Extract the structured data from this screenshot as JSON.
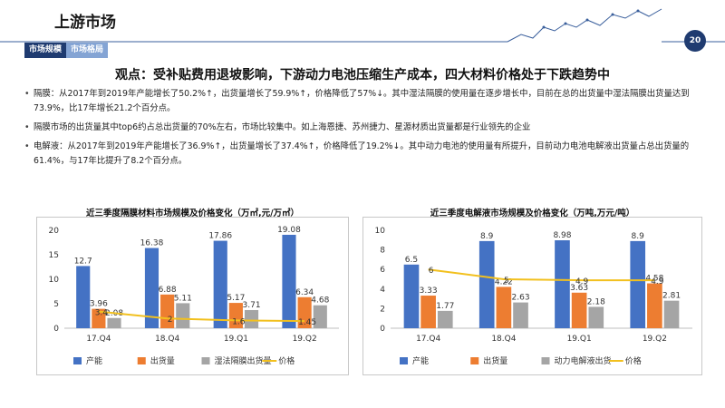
{
  "header": {
    "title": "上游市场",
    "page_number": "20",
    "tabs": [
      {
        "label": "市场规模",
        "active": true
      },
      {
        "label": "市场格局",
        "active": false
      }
    ],
    "accent_color": "#1f3b70"
  },
  "headline": "观点：受补贴费用退坡影响，下游动力电池压缩生产成本，四大材料价格处于下跌趋势中",
  "bullets": [
    "隔膜：从2017年到2019年产能增长了50.2%↑，出货量增长了59.9%↑，价格降低了57%↓。其中湿法隔膜的使用量在逐步增长中，目前在总的出货量中湿法隔膜出货量达到73.9%，比17年增长21.2个百分点。",
    "隔膜市场的出货量其中top6约占总出货量的70%左右，市场比较集中。如上海恩捷、苏州捷力、星源材质出货量都是行业领先的企业",
    "电解液：从2017年到2019年产能增长了36.9%↑，出货量增长了37.4%↑，价格降低了19.2%↓。其中动力电池的使用量有所提升，目前动力电池电解液出货量占总出货量的61.4%，与17年比提升了8.2个百分点。"
  ],
  "chart_data": [
    {
      "type": "bar",
      "title": "近三季度隔膜材料市场规模及价格变化（万㎡,元/万㎡）",
      "categories": [
        "17.Q4",
        "18.Q4",
        "19.Q1",
        "19.Q2"
      ],
      "series": [
        {
          "name": "产能",
          "kind": "bar",
          "color": "#4472c4",
          "values": [
            12.7,
            16.38,
            17.86,
            19.08
          ],
          "labels": [
            "12.7",
            "16.38",
            "17.86",
            "19.08"
          ]
        },
        {
          "name": "出货量",
          "kind": "bar",
          "color": "#ed7d31",
          "values": [
            3.96,
            6.88,
            5.17,
            6.34
          ],
          "labels": [
            "3.96",
            "6.88",
            "5.17",
            "6.34"
          ]
        },
        {
          "name": "湿法隔膜出货量",
          "kind": "bar",
          "color": "#a5a5a5",
          "values": [
            2.08,
            5.11,
            3.71,
            4.68
          ],
          "labels": [
            "2.08",
            "5.11",
            "3.71",
            "4.68"
          ]
        },
        {
          "name": "价格",
          "kind": "line",
          "color": "#f2c01e",
          "values": [
            3.4,
            2,
            1.6,
            1.45
          ],
          "labels": [
            "3.4",
            "2",
            "1.6",
            "1.45"
          ]
        }
      ],
      "ylim": [
        0,
        20
      ],
      "yticks": [
        "0",
        "5",
        "10",
        "15",
        "20"
      ],
      "legend": "bottom"
    },
    {
      "type": "bar",
      "title": "近三季度电解液市场规模及价格变化（万吨,万元/吨）",
      "categories": [
        "17.Q4",
        "18.Q4",
        "19.Q1",
        "19.Q2"
      ],
      "series": [
        {
          "name": "产能",
          "kind": "bar",
          "color": "#4472c4",
          "values": [
            6.5,
            8.9,
            8.98,
            8.9
          ],
          "labels": [
            "6.5",
            "8.9",
            "8.98",
            "8.9"
          ]
        },
        {
          "name": "出货量",
          "kind": "bar",
          "color": "#ed7d31",
          "values": [
            3.33,
            4.22,
            3.63,
            4.58
          ],
          "labels": [
            "3.33",
            "4.22",
            "3.63",
            "4.58"
          ]
        },
        {
          "name": "动力电解液出货",
          "kind": "bar",
          "color": "#a5a5a5",
          "values": [
            1.77,
            2.63,
            2.18,
            2.81
          ],
          "labels": [
            "1.77",
            "2.63",
            "2.18",
            "2.81"
          ]
        },
        {
          "name": "价格",
          "kind": "line",
          "color": "#f2c01e",
          "values": [
            6,
            5,
            4.9,
            4.9
          ],
          "labels": [
            "6",
            "5",
            "4.9",
            "4.9"
          ]
        }
      ],
      "ylim": [
        0,
        10
      ],
      "yticks": [
        "0",
        "2",
        "4",
        "6",
        "8",
        "10"
      ],
      "legend": "bottom"
    }
  ]
}
